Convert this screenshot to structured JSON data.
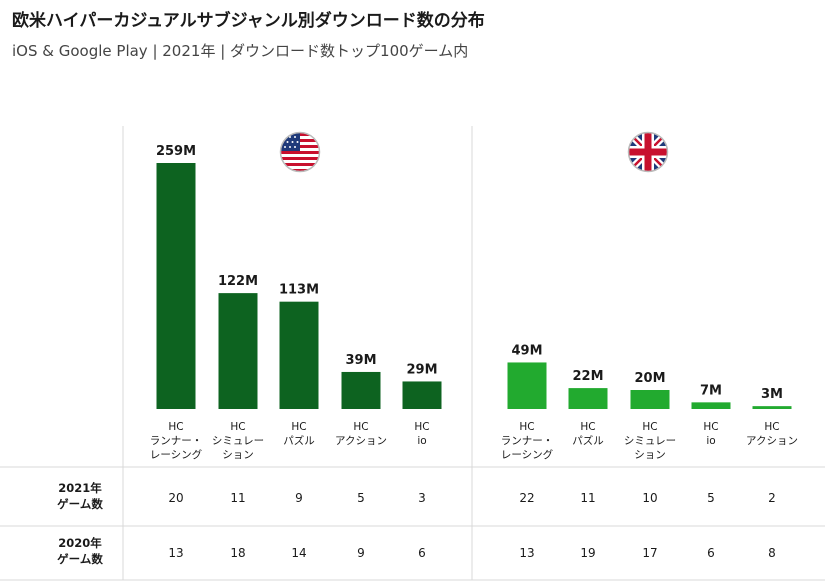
{
  "header": {
    "title": "欧米ハイパーカジュアルサブジャンル別ダウンロード数の分布",
    "subtitle": "iOS & Google Play | 2021年 | ダウンロード数トップ100ゲーム内"
  },
  "colors": {
    "us_bar": "#0d6320",
    "uk_bar": "#22aa2f",
    "grid": "#d8d8d8",
    "text": "#1a1a1a"
  },
  "panels": [
    {
      "flag": "us-flag-icon"
    },
    {
      "flag": "uk-flag-icon"
    }
  ],
  "chart_data": [
    {
      "type": "bar",
      "categories": [
        [
          "HC",
          "ランナー・",
          "レーシング"
        ],
        [
          "HC",
          "シミュレー",
          "ション"
        ],
        [
          "HC",
          "パズル"
        ],
        [
          "HC",
          "アクション"
        ],
        [
          "HC",
          "io"
        ]
      ],
      "values": [
        259,
        122,
        113,
        39,
        29
      ],
      "value_labels": [
        "259M",
        "122M",
        "113M",
        "39M",
        "29M"
      ],
      "ylim": [
        0,
        259
      ],
      "games_2021": [
        "20",
        "11",
        "9",
        "5",
        "3"
      ],
      "games_2020": [
        "13",
        "18",
        "14",
        "9",
        "6"
      ]
    },
    {
      "type": "bar",
      "categories": [
        [
          "HC",
          "ランナー・",
          "レーシング"
        ],
        [
          "HC",
          "パズル"
        ],
        [
          "HC",
          "シミュレー",
          "ション"
        ],
        [
          "HC",
          "io"
        ],
        [
          "HC",
          "アクション"
        ]
      ],
      "values": [
        49,
        22,
        20,
        7,
        3
      ],
      "value_labels": [
        "49M",
        "22M",
        "20M",
        "7M",
        "3M"
      ],
      "ylim": [
        0,
        259
      ],
      "games_2021": [
        "22",
        "11",
        "10",
        "5",
        "2"
      ],
      "games_2020": [
        "13",
        "19",
        "17",
        "6",
        "8"
      ]
    }
  ],
  "table": {
    "row_2021_label": [
      "2021年",
      "ゲーム数"
    ],
    "row_2020_label": [
      "2020年",
      "ゲーム数"
    ]
  }
}
